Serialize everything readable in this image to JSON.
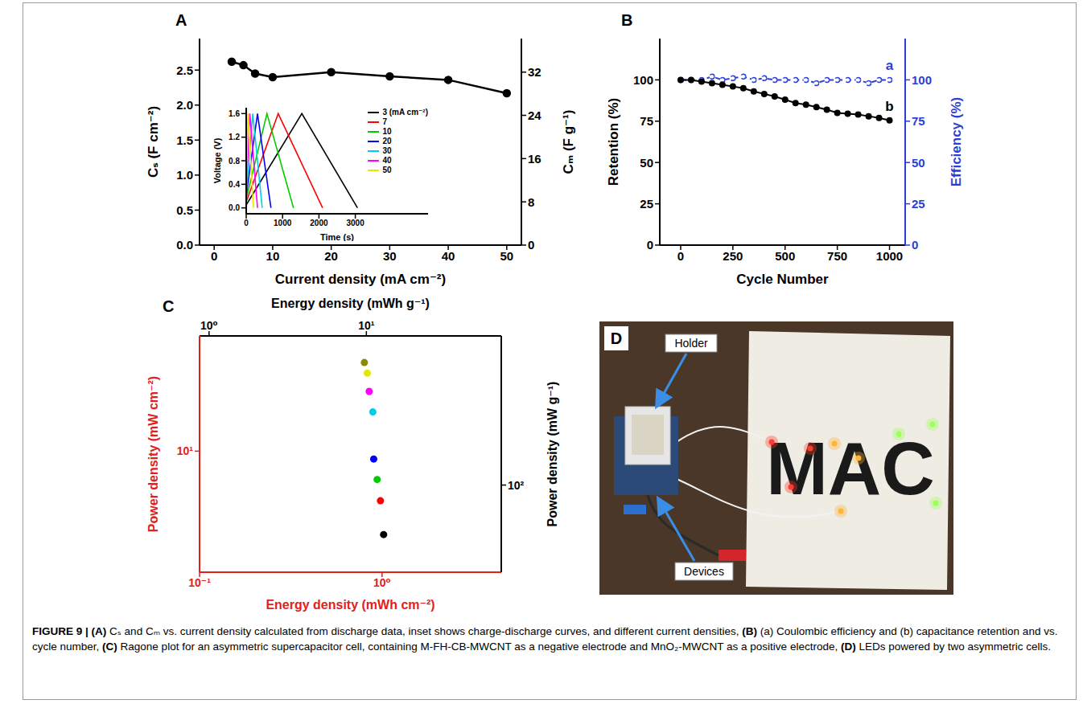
{
  "chart_data": [
    {
      "panel": "A",
      "type": "line",
      "x_label": "Current density (mA cm⁻²)",
      "y_label": "Cₛ (F cm⁻²)",
      "y2_label": "Cₘ (F g⁻¹)",
      "x": [
        3,
        5,
        7,
        10,
        20,
        30,
        40,
        50
      ],
      "values": [
        2.62,
        2.57,
        2.45,
        2.4,
        2.47,
        2.41,
        2.36,
        2.17
      ],
      "color": "#000000",
      "marker": "circle",
      "xlim": [
        -2.5,
        52.5
      ],
      "xticks": [
        0,
        10,
        20,
        30,
        40,
        50
      ],
      "ylim": [
        0,
        2.95
      ],
      "yticks": [
        {
          "value": 0,
          "label": "0.0"
        },
        0.5,
        {
          "value": 1,
          "label": "1.0"
        },
        1.5,
        {
          "value": 2,
          "label": "2.0"
        },
        2.5
      ],
      "y2lim": [
        0,
        38.2
      ],
      "y2ticks": [
        0,
        8,
        16,
        24,
        32
      ],
      "inset": {
        "type": "line",
        "x_label": "Time (s)",
        "y_label": "Voltage (V)",
        "xlim": [
          0,
          5000
        ],
        "xticks": [
          0,
          1000,
          2000,
          3000
        ],
        "ylim": [
          -0.1,
          1.7
        ],
        "yticks": [
          {
            "value": 0,
            "label": "0.0"
          },
          0.4,
          0.8,
          1.2,
          1.6
        ],
        "legend": "upper right",
        "series": [
          {
            "name": "3 (mA cm⁻²)",
            "color": "#000000",
            "x": [
              0,
              1530,
              3060
            ],
            "values": [
              0.05,
              1.6,
              0
            ]
          },
          {
            "name": "7",
            "color": "#ff0000",
            "x": [
              0,
              880,
              2100
            ],
            "values": [
              0.1,
              1.6,
              0
            ]
          },
          {
            "name": "10",
            "color": "#00cc00",
            "x": [
              0,
              570,
              1300
            ],
            "values": [
              0.15,
              1.6,
              0
            ]
          },
          {
            "name": "20",
            "color": "#0000ff",
            "x": [
              0,
              310,
              680
            ],
            "values": [
              0.2,
              1.6,
              0
            ]
          },
          {
            "name": "30",
            "color": "#00ccee",
            "x": [
              0,
              180,
              440
            ],
            "values": [
              0.25,
              1.6,
              0
            ]
          },
          {
            "name": "40",
            "color": "#ff00ff",
            "x": [
              0,
              100,
              310
            ],
            "values": [
              0.3,
              1.6,
              0
            ]
          },
          {
            "name": "50",
            "color": "#e6e600",
            "x": [
              0,
              50,
              200
            ],
            "values": [
              0.3,
              1.6,
              0
            ]
          }
        ]
      }
    },
    {
      "panel": "B",
      "type": "line",
      "x_label": "Cycle Number",
      "y_label": "Retention (%)",
      "y2_label": "Efficiency (%)",
      "x": [
        0,
        50,
        100,
        150,
        200,
        250,
        300,
        350,
        400,
        450,
        500,
        550,
        600,
        650,
        700,
        750,
        800,
        850,
        900,
        950,
        1000
      ],
      "xlim": [
        -100,
        1075
      ],
      "xticks": [
        0,
        250,
        500,
        750,
        1000
      ],
      "ylim": [
        0,
        125
      ],
      "yticks": [
        0,
        25,
        50,
        75,
        100
      ],
      "y2lim": [
        0,
        125
      ],
      "y2ticks": [
        0,
        25,
        50,
        75,
        100
      ],
      "series": [
        {
          "name": "a",
          "axis": "y2",
          "color": "#2b3fd6",
          "line_style": "dashed",
          "marker": "open circle",
          "values": [
            100,
            100,
            100,
            102,
            100,
            101,
            102,
            100,
            101,
            100,
            100,
            100,
            100,
            98,
            100,
            100,
            100,
            100,
            98,
            100,
            100
          ]
        },
        {
          "name": "b",
          "color": "#000000",
          "line_style": "solid",
          "marker": "circle",
          "values": [
            100,
            100,
            99,
            98,
            97,
            96,
            95,
            93,
            91.5,
            90,
            88,
            86,
            85,
            83.5,
            82,
            80,
            79.5,
            79,
            78,
            77,
            75.5
          ]
        }
      ]
    },
    {
      "panel": "C",
      "type": "scatter",
      "log": true,
      "marker": "circle",
      "x_label": "Energy density (mWh cm⁻²)",
      "y_label": "Power density (mW cm⁻²)",
      "x2_label": "Energy density (mWh g⁻¹)",
      "y2_label": "Power density (mW g⁻¹)",
      "x": [
        1.02,
        0.98,
        0.94,
        0.9,
        0.89,
        0.85,
        0.83,
        0.8
      ],
      "values": [
        2.58,
        4.47,
        6.31,
        8.8,
        18.9,
        26.4,
        35.5,
        42.2
      ],
      "colors": [
        "#000000",
        "#ff0000",
        "#00cc00",
        "#0000ff",
        "#00ccee",
        "#ff00ff",
        "#e6e600",
        "#8b8b00"
      ],
      "xlim": [
        0.1,
        4.5
      ],
      "xticks": [
        {
          "value": 0.1,
          "label": "10⁻¹"
        },
        {
          "value": 1,
          "label": "10⁰"
        }
      ],
      "ylim": [
        1.4,
        65
      ],
      "yticks": [
        {
          "value": 10,
          "label": "10¹"
        }
      ],
      "x2lim": [
        0.87,
        72
      ],
      "x2ticks": [
        {
          "value": 1,
          "label": "10⁰"
        },
        {
          "value": 10,
          "label": "10¹"
        }
      ],
      "y2lim": [
        24,
        1150
      ],
      "y2ticks": [
        {
          "value": 100,
          "label": "10²"
        }
      ]
    }
  ],
  "photo": {
    "panel": "D",
    "labels": [
      "Holder",
      "Devices"
    ],
    "sign": "MAC"
  },
  "caption": {
    "title": "FIGURE 9 |",
    "parts": [
      {
        "label": "(A)",
        "text": "Cₛ and Cₘ vs. current density calculated from discharge data, inset shows charge-discharge curves, and different current densities,"
      },
      {
        "label": "(B)",
        "text": "(a) Coulombic efficiency and (b) capacitance retention and vs. cycle number,"
      },
      {
        "label": "(C)",
        "text": "Ragone plot for an asymmetric supercapacitor cell, containing M-FH-CB-MWCNT as a negative electrode and MnO₂-MWCNT as a positive electrode,"
      },
      {
        "label": "(D)",
        "text": "LEDs powered by two asymmetric cells."
      }
    ]
  }
}
